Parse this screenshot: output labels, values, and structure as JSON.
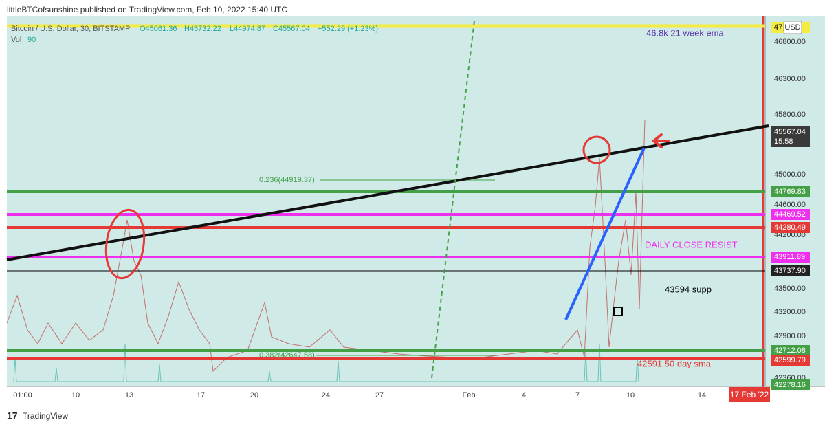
{
  "header": "littleBTCofsunshine published on TradingView.com, Feb 10, 2022 15:40 UTC",
  "legend": {
    "symbol": "Bitcoin / U.S. Dollar, 30, BITSTAMP",
    "open": "O45061.36",
    "high": "H45732.22",
    "low": "L44974.87",
    "close": "C45567.04",
    "change": "+552.29 (+1.23%)"
  },
  "volume": {
    "label": "Vol",
    "value": "90"
  },
  "currency": "USD",
  "price_axis": [
    "46800.00",
    "46300.00",
    "45800.00",
    "45000.00",
    "44600.00",
    "44200.00",
    "43500.00",
    "43200.00",
    "42900.00",
    "42360.00"
  ],
  "price_labels": [
    "47",
    "45567.04",
    "15:58",
    "44769.83",
    "44469.52",
    "44280.49",
    "43911.89",
    "43737.90",
    "42712.08",
    "42599.79",
    "42278.16"
  ],
  "time_axis": [
    "01:00",
    "10",
    "13",
    "17",
    "20",
    "24",
    "27",
    "Feb",
    "4",
    "7",
    "10",
    "14"
  ],
  "cursor_date": "17 Feb '22",
  "annotations": [
    "46.8k 21 week ema",
    "DAILY CLOSE RESIST",
    "43594 supp",
    "42591 50 day sma",
    "0.236(44919.37)",
    "0.382(42647.58)"
  ],
  "footer": "TradingView"
}
